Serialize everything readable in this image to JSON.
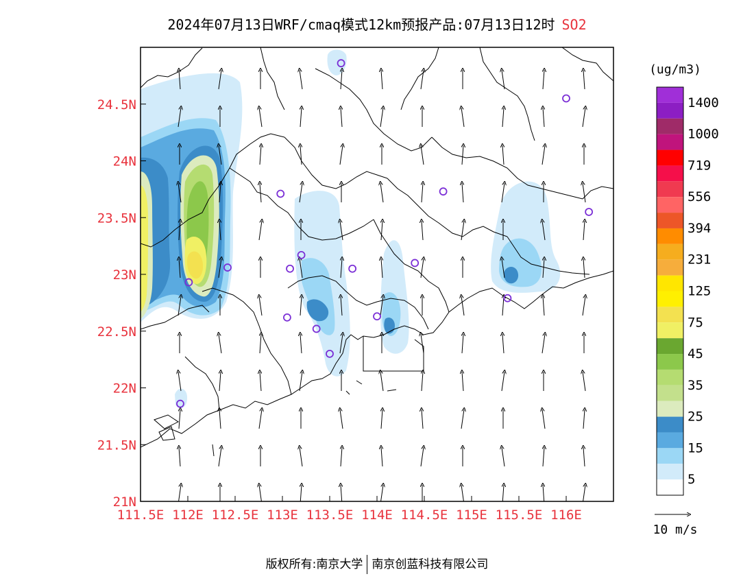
{
  "title": {
    "text": "2024年07月13日WRF/cmaq模式12km预报产品:07月13日12时",
    "pollutant": "SO2"
  },
  "map": {
    "lon_range": [
      111.5,
      116.5
    ],
    "lat_range": [
      21.0,
      25.0
    ],
    "lat_ticks": [
      "21N",
      "21.5N",
      "22N",
      "22.5N",
      "23N",
      "23.5N",
      "24N",
      "24.5N"
    ],
    "lon_ticks": [
      "111.5E",
      "112E",
      "112.5E",
      "113E",
      "113.5E",
      "114E",
      "114.5E",
      "115E",
      "115.5E",
      "116E"
    ],
    "stations": [
      [
        113.62,
        24.86
      ],
      [
        116.0,
        24.55
      ],
      [
        112.98,
        23.71
      ],
      [
        114.7,
        23.73
      ],
      [
        116.24,
        23.55
      ],
      [
        113.2,
        23.17
      ],
      [
        112.42,
        23.06
      ],
      [
        113.08,
        23.05
      ],
      [
        113.74,
        23.05
      ],
      [
        114.4,
        23.1
      ],
      [
        112.01,
        22.93
      ],
      [
        113.05,
        22.62
      ],
      [
        113.36,
        22.52
      ],
      [
        114.0,
        22.63
      ],
      [
        115.38,
        22.79
      ],
      [
        113.5,
        22.3
      ],
      [
        111.92,
        21.86
      ]
    ]
  },
  "legend": {
    "unit": "(ug/m3)",
    "labels": [
      "1400",
      "1000",
      "719",
      "556",
      "394",
      "231",
      "125",
      "75",
      "45",
      "35",
      "25",
      "15",
      "5"
    ],
    "colors": [
      "#a02fd8",
      "#8c1ec3",
      "#9f2b68",
      "#c0147c",
      "#ff0000",
      "#f50f4a",
      "#f03a50",
      "#ff6464",
      "#ed5628",
      "#ff8c00",
      "#f6ad1e",
      "#f6ad3c",
      "#ffe600",
      "#fff000",
      "#f3e150",
      "#f0f064",
      "#6aa730",
      "#8cc84b",
      "#b5dc71",
      "#c3e08c",
      "#dcebbe",
      "#3c8cc8",
      "#5aaae0",
      "#9bd7f5",
      "#d2ebfa",
      "#ffffff"
    ]
  },
  "wind": {
    "scale_label": "10 m/s"
  },
  "footer": {
    "left": "版权所有:南京大学",
    "right": "南京创蓝科技有限公司"
  }
}
